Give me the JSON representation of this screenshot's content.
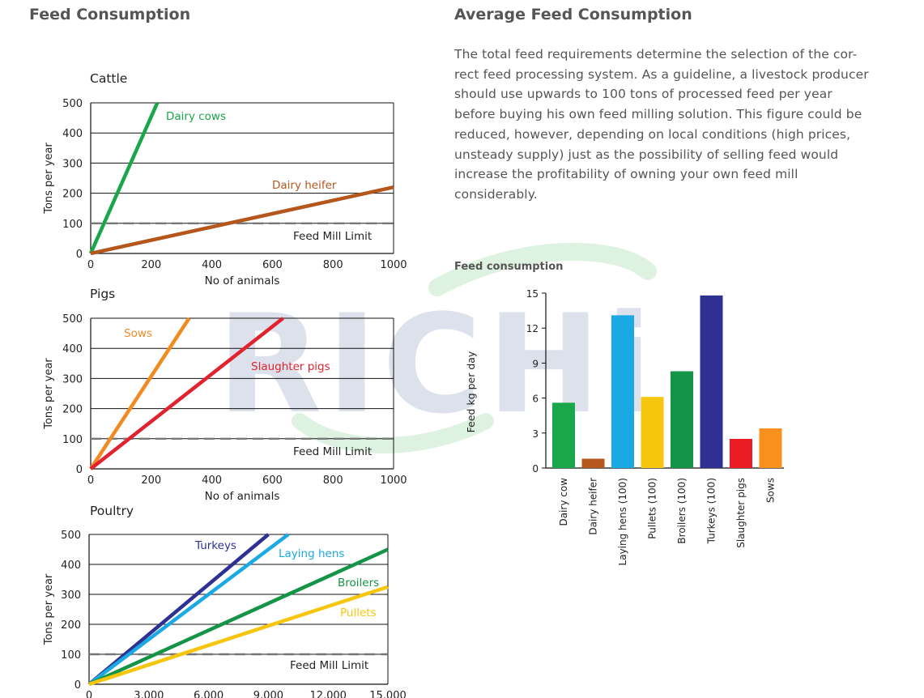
{
  "left_heading": "Feed Consumption",
  "right_heading": "Average Feed Consumption",
  "intro_text": "The total feed requirements determine the selection of the cor-rect feed processing system. As a guideline, a livestock producer should use upwards to 100 tons of processed feed per year before buying his own feed milling solution. This figure could be reduced, however, depending on local conditions (high prices, unsteady supply) just as the possibility of selling feed would increase the profitability of owning your own feed mill considerably.",
  "watermark": "RICHi",
  "chart_data": [
    {
      "type": "line",
      "title": "Cattle",
      "xlabel": "No of animals",
      "ylabel": "Tons per year",
      "xlim": [
        0,
        1000
      ],
      "ylim": [
        0,
        500
      ],
      "x_ticks": [
        "0",
        "200",
        "400",
        "600",
        "800",
        "1000"
      ],
      "y_ticks": [
        "0",
        "100",
        "200",
        "300",
        "400",
        "500"
      ],
      "grid": true,
      "limit": {
        "label": "Feed Mill Limit",
        "value": 100
      },
      "series": [
        {
          "name": "Dairy cows",
          "color": "#1aa64a",
          "points": [
            [
              0,
              0
            ],
            [
              220,
              500
            ]
          ]
        },
        {
          "name": "Dairy heifer",
          "color": "#b5561c",
          "points": [
            [
              0,
              0
            ],
            [
              1000,
              220
            ]
          ]
        }
      ]
    },
    {
      "type": "line",
      "title": "Pigs",
      "xlabel": "No of animals",
      "ylabel": "Tons per year",
      "xlim": [
        0,
        1000
      ],
      "ylim": [
        0,
        500
      ],
      "x_ticks": [
        "0",
        "200",
        "400",
        "600",
        "800",
        "1000"
      ],
      "y_ticks": [
        "0",
        "100",
        "200",
        "300",
        "400",
        "500"
      ],
      "grid": true,
      "limit": {
        "label": "Feed Mill Limit",
        "value": 100
      },
      "series": [
        {
          "name": "Sows",
          "color": "#f28a22",
          "points": [
            [
              0,
              0
            ],
            [
              325,
              500
            ]
          ]
        },
        {
          "name": "Slaughter pigs",
          "color": "#e0232e",
          "points": [
            [
              0,
              0
            ],
            [
              635,
              500
            ]
          ]
        }
      ]
    },
    {
      "type": "line",
      "title": "Poultry",
      "xlabel": "",
      "ylabel": "Tons per year",
      "xlim": [
        0,
        15000
      ],
      "ylim": [
        0,
        500
      ],
      "x_ticks": [
        "0",
        "3,000",
        "6,000",
        "9,000",
        "12,000",
        "15,000"
      ],
      "y_ticks": [
        "0",
        "100",
        "200",
        "300",
        "400",
        "500"
      ],
      "grid": true,
      "limit": {
        "label": "Feed Mill Limit",
        "value": 100
      },
      "series": [
        {
          "name": "Turkeys",
          "color": "#2e3192",
          "points": [
            [
              0,
              0
            ],
            [
              9000,
              500
            ]
          ]
        },
        {
          "name": "Laying hens",
          "color": "#1ba9e4",
          "points": [
            [
              0,
              0
            ],
            [
              10000,
              500
            ]
          ]
        },
        {
          "name": "Broilers",
          "color": "#139447",
          "points": [
            [
              0,
              0
            ],
            [
              15000,
              450
            ]
          ]
        },
        {
          "name": "Pullets",
          "color": "#f6c60f",
          "points": [
            [
              0,
              0
            ],
            [
              15000,
              325
            ]
          ]
        }
      ]
    },
    {
      "type": "bar",
      "title": "Feed consumption",
      "xlabel": "",
      "ylabel": "Feed kg per day",
      "ylim": [
        0,
        15
      ],
      "y_ticks": [
        "0",
        "3",
        "6",
        "9",
        "12",
        "15"
      ],
      "grid": false,
      "categories": [
        "Dairy cow",
        "Dairy heifer",
        "Laying hens (100)",
        "Pullets (100)",
        "Broilers (100)",
        "Turkeys (100)",
        "Slaughter pigs",
        "Sows"
      ],
      "values": [
        5.6,
        0.8,
        13.1,
        6.1,
        8.3,
        14.8,
        2.5,
        3.4
      ],
      "colors": [
        "#1aa64a",
        "#b5561c",
        "#1ba9e4",
        "#f6c60f",
        "#139447",
        "#2e3192",
        "#ec1c24",
        "#f7901e"
      ]
    }
  ]
}
